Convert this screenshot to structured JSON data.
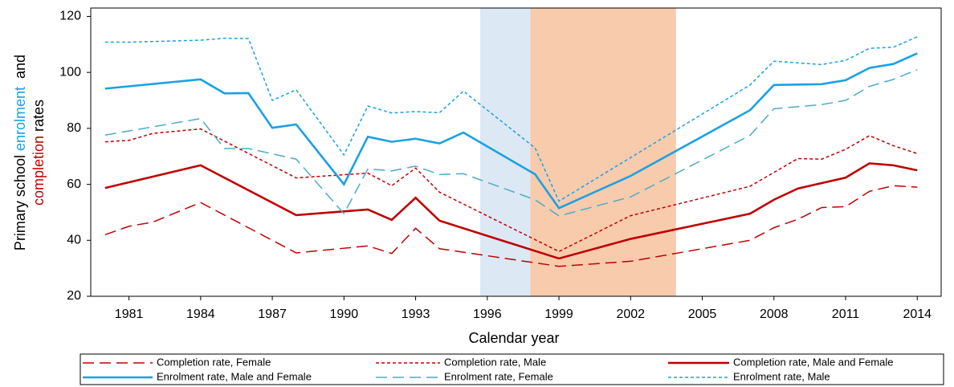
{
  "chart_data": {
    "type": "line",
    "x_label": "Calendar year",
    "y_label": {
      "lines": [
        [
          "Primary school ",
          "enrolment",
          "  and"
        ],
        [
          "completion",
          " rates"
        ]
      ],
      "colors": [
        [
          "#000000",
          "#1ba1e2",
          "#000000"
        ],
        [
          "#c00000",
          "#000000"
        ]
      ]
    },
    "xlim": [
      1979.4,
      2015
    ],
    "xticks": [
      1981,
      1984,
      1987,
      1990,
      1993,
      1996,
      1999,
      2002,
      2005,
      2008,
      2011,
      2014
    ],
    "ylim": [
      20,
      123
    ],
    "yticks": [
      20,
      40,
      60,
      80,
      100,
      120
    ],
    "grid": false,
    "legend": "bottom",
    "shaded_regions": [
      {
        "x": [
          1995.7,
          1997.8
        ],
        "color": "#dde8f5"
      },
      {
        "x": [
          1997.8,
          2003.9
        ],
        "color": "#f8cbad"
      }
    ],
    "series": [
      {
        "name": "Completion rate, Female",
        "color": "#c00000",
        "style": "longdash",
        "bold": false,
        "x": [
          1980,
          1981,
          1982,
          1984,
          1988,
          1991,
          1992,
          1993,
          1994,
          1999,
          2002,
          2007,
          2008,
          2009,
          2010,
          2011,
          2012,
          2013,
          2014
        ],
        "values": [
          42,
          45,
          46.5,
          53.5,
          35.5,
          38,
          35.3,
          44.3,
          37,
          30.7,
          32.5,
          40,
          44.5,
          47.5,
          51.7,
          52,
          57.5,
          59.5,
          59
        ]
      },
      {
        "name": "Completion rate, Male",
        "color": "#c00000",
        "style": "dashed",
        "bold": false,
        "x": [
          1980,
          1981,
          1982,
          1984,
          1988,
          1991,
          1992,
          1993,
          1994,
          1999,
          2002,
          2007,
          2009,
          2010,
          2011,
          2012,
          2013,
          2014
        ],
        "values": [
          75.2,
          75.7,
          78.2,
          79.8,
          62.3,
          64,
          59.5,
          65.8,
          57.2,
          36,
          48.8,
          59.3,
          69.2,
          69,
          72.5,
          77.4,
          73.8,
          71
        ]
      },
      {
        "name": "Completion rate, Male and Female",
        "color": "#c00000",
        "style": "solid",
        "bold": true,
        "x": [
          1980,
          1984,
          1988,
          1991,
          1992,
          1993,
          1994,
          1999,
          2002,
          2007,
          2008,
          2009,
          2011,
          2012,
          2013,
          2014
        ],
        "values": [
          58.7,
          66.8,
          49,
          51,
          47.3,
          55.2,
          47,
          33.5,
          40.5,
          49.5,
          54.5,
          58.5,
          62.4,
          67.5,
          66.8,
          65
        ]
      },
      {
        "name": "Enrolment rate, Male and Female",
        "color": "#1ba1e2",
        "style": "solid",
        "bold": true,
        "x": [
          1980,
          1984,
          1985,
          1986,
          1987,
          1988,
          1990,
          1991,
          1992,
          1993,
          1994,
          1995,
          1998,
          1999,
          2002,
          2007,
          2008,
          2010,
          2011,
          2012,
          2013,
          2014
        ],
        "values": [
          94.2,
          97.5,
          92.5,
          92.6,
          80.2,
          81.4,
          60,
          77,
          75.2,
          76.3,
          74.6,
          78.5,
          63.6,
          51.5,
          63,
          86.5,
          95.5,
          95.8,
          97.2,
          101.6,
          103,
          106.8
        ]
      },
      {
        "name": "Enrolment rate, Female",
        "color": "#4bacc6",
        "style": "longdash",
        "bold": false,
        "x": [
          1980,
          1984,
          1985,
          1986,
          1988,
          1990,
          1991,
          1992,
          1993,
          1994,
          1995,
          1998,
          1999,
          2002,
          2007,
          2008,
          2010,
          2011,
          2012,
          2013,
          2014
        ],
        "values": [
          77.6,
          83.5,
          72.8,
          72.8,
          69,
          49.5,
          65.5,
          64.8,
          66.5,
          63.5,
          63.8,
          54.5,
          48.7,
          55.5,
          77.5,
          87,
          88.5,
          90,
          95,
          97.5,
          101
        ]
      },
      {
        "name": "Enrolment rate, Male",
        "color": "#1ba1e2",
        "style": "dashed",
        "bold": false,
        "x": [
          1980,
          1981,
          1984,
          1985,
          1986,
          1987,
          1988,
          1990,
          1991,
          1992,
          1993,
          1994,
          1995,
          1998,
          1999,
          2007,
          2008,
          2010,
          2011,
          2012,
          2013,
          2014
        ],
        "values": [
          110.8,
          110.8,
          111.5,
          112.2,
          112.1,
          90,
          93.8,
          70.5,
          88,
          85.5,
          86,
          85.6,
          93.3,
          73,
          54,
          95.5,
          104,
          102.8,
          104.3,
          108.6,
          109,
          112.7
        ]
      }
    ]
  }
}
